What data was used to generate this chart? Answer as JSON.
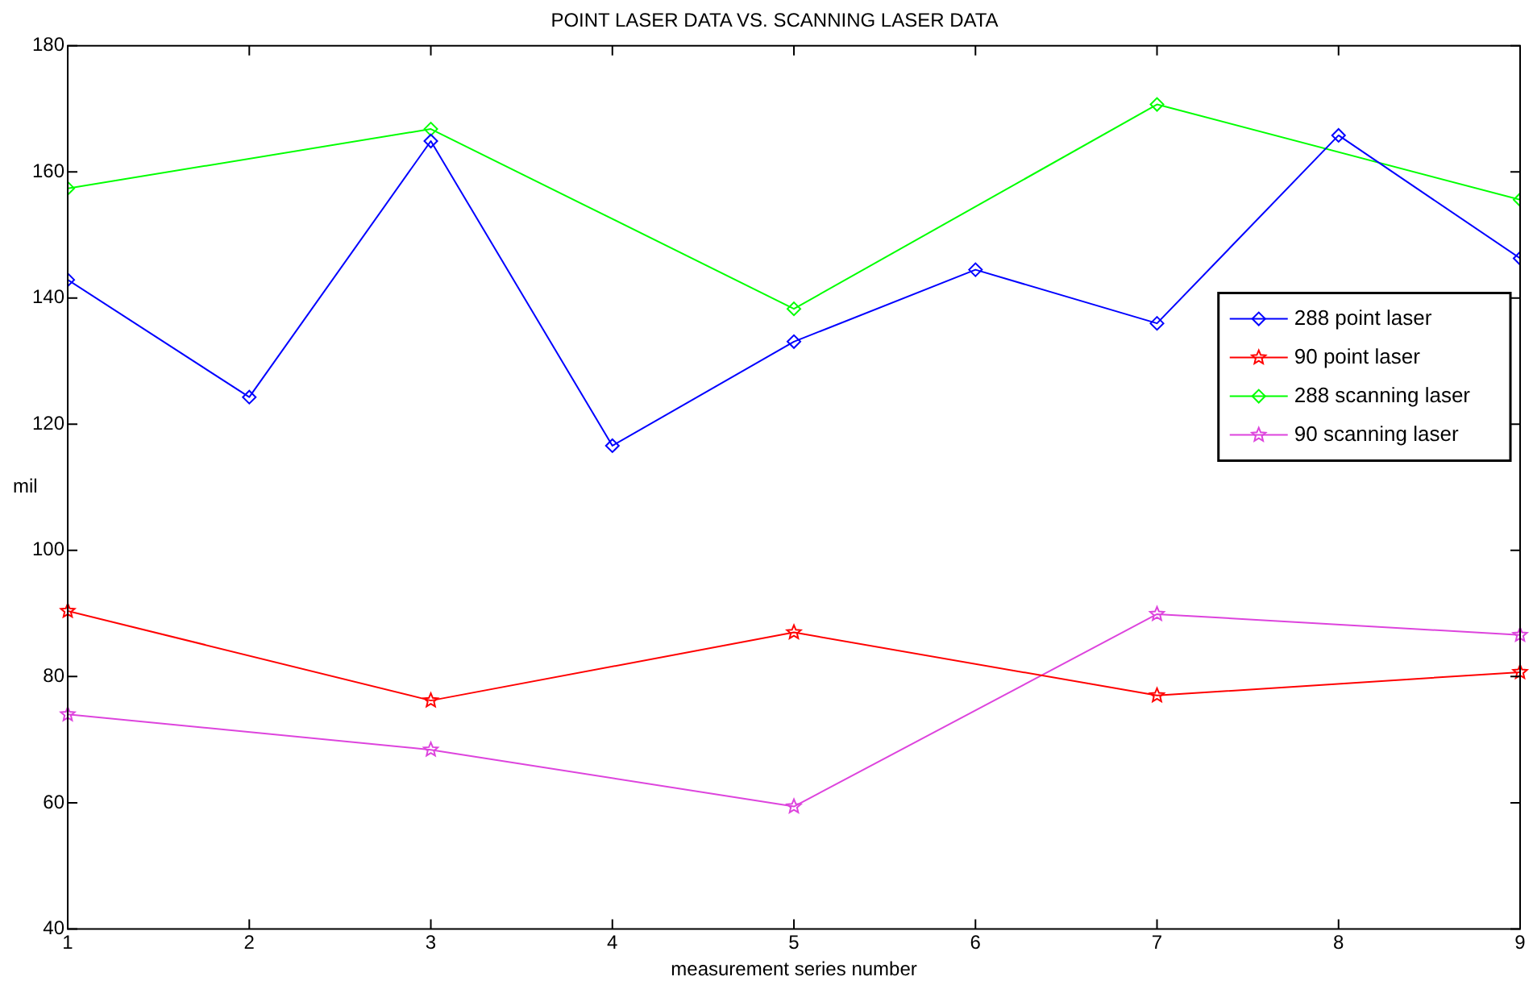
{
  "chart_data": {
    "type": "line",
    "title": "POINT LASER DATA VS. SCANNING LASER DATA",
    "xlabel": "measurement series number",
    "ylabel": "mil",
    "xlim": [
      1,
      9
    ],
    "xticks": [
      1,
      2,
      3,
      4,
      5,
      6,
      7,
      8,
      9
    ],
    "ylim": [
      40,
      180
    ],
    "yticks": [
      40,
      60,
      80,
      100,
      120,
      140,
      160,
      180
    ],
    "legend": "right",
    "line_style": "solid",
    "series": [
      {
        "name": "288 point laser",
        "color": "#0000ff",
        "marker": "diamond",
        "x": [
          1,
          2,
          3,
          4,
          5,
          6,
          7,
          8,
          9
        ],
        "values": [
          142.9,
          124.3,
          164.9,
          116.6,
          133.1,
          144.5,
          136.0,
          165.8,
          146.3
        ]
      },
      {
        "name": "90 point laser",
        "color": "#ff0000",
        "marker": "star",
        "x": [
          1,
          3,
          5,
          7,
          9
        ],
        "values": [
          90.4,
          76.2,
          87.0,
          77.0,
          80.7
        ]
      },
      {
        "name": "288 scanning laser",
        "color": "#00ff00",
        "marker": "diamond",
        "x": [
          1,
          3,
          5,
          7,
          9
        ],
        "values": [
          157.4,
          166.8,
          138.3,
          170.7,
          155.6
        ]
      },
      {
        "name": "90 scanning laser",
        "color": "#dd44dd",
        "marker": "star",
        "x": [
          1,
          3,
          5,
          7,
          9
        ],
        "values": [
          74.0,
          68.4,
          59.4,
          89.9,
          86.6
        ]
      }
    ]
  }
}
